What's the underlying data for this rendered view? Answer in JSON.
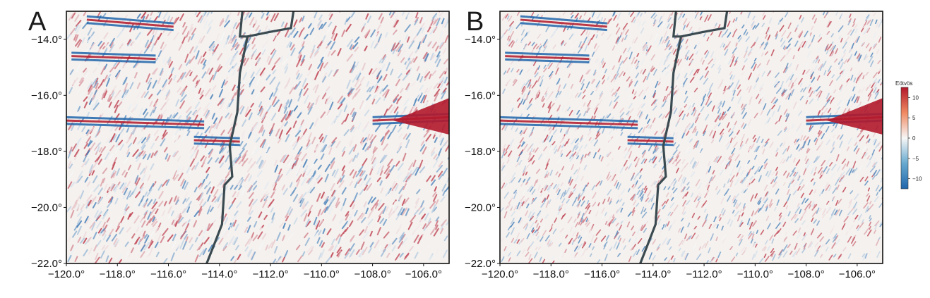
{
  "panels": [
    {
      "letter": "A"
    },
    {
      "letter": "B"
    }
  ],
  "map": {
    "lon_range": [
      -120.0,
      -105.0
    ],
    "lat_range": [
      -22.0,
      -13.0
    ],
    "x_ticks": [
      -120.0,
      -118.0,
      -116.0,
      -114.0,
      -112.0,
      -110.0,
      -108.0,
      -106.0
    ],
    "y_ticks": [
      -22.0,
      -20.0,
      -18.0,
      -16.0,
      -14.0
    ],
    "x_tick_labels": [
      "−120.0°",
      "−118.0°",
      "−116.0°",
      "−114.0°",
      "−112.0°",
      "−110.0°",
      "−108.0°",
      "−106.0°"
    ],
    "y_tick_labels": [
      "−22.0°",
      "−20.0°",
      "−18.0°",
      "−16.0°",
      "−14.0°"
    ],
    "colormap": "blue-white-red diverging",
    "ridge_line_color": "#3a4a50"
  },
  "colorbar": {
    "title": "Eötvös",
    "range": [
      -12.5,
      12.5
    ],
    "ticks": [
      10,
      5,
      0,
      -5,
      -10
    ],
    "tick_labels": [
      "10",
      "5",
      "0",
      "−5",
      "−10"
    ],
    "colors": {
      "high": "#b2182b",
      "mid": "#f7f7f7",
      "low": "#2166ac"
    }
  }
}
